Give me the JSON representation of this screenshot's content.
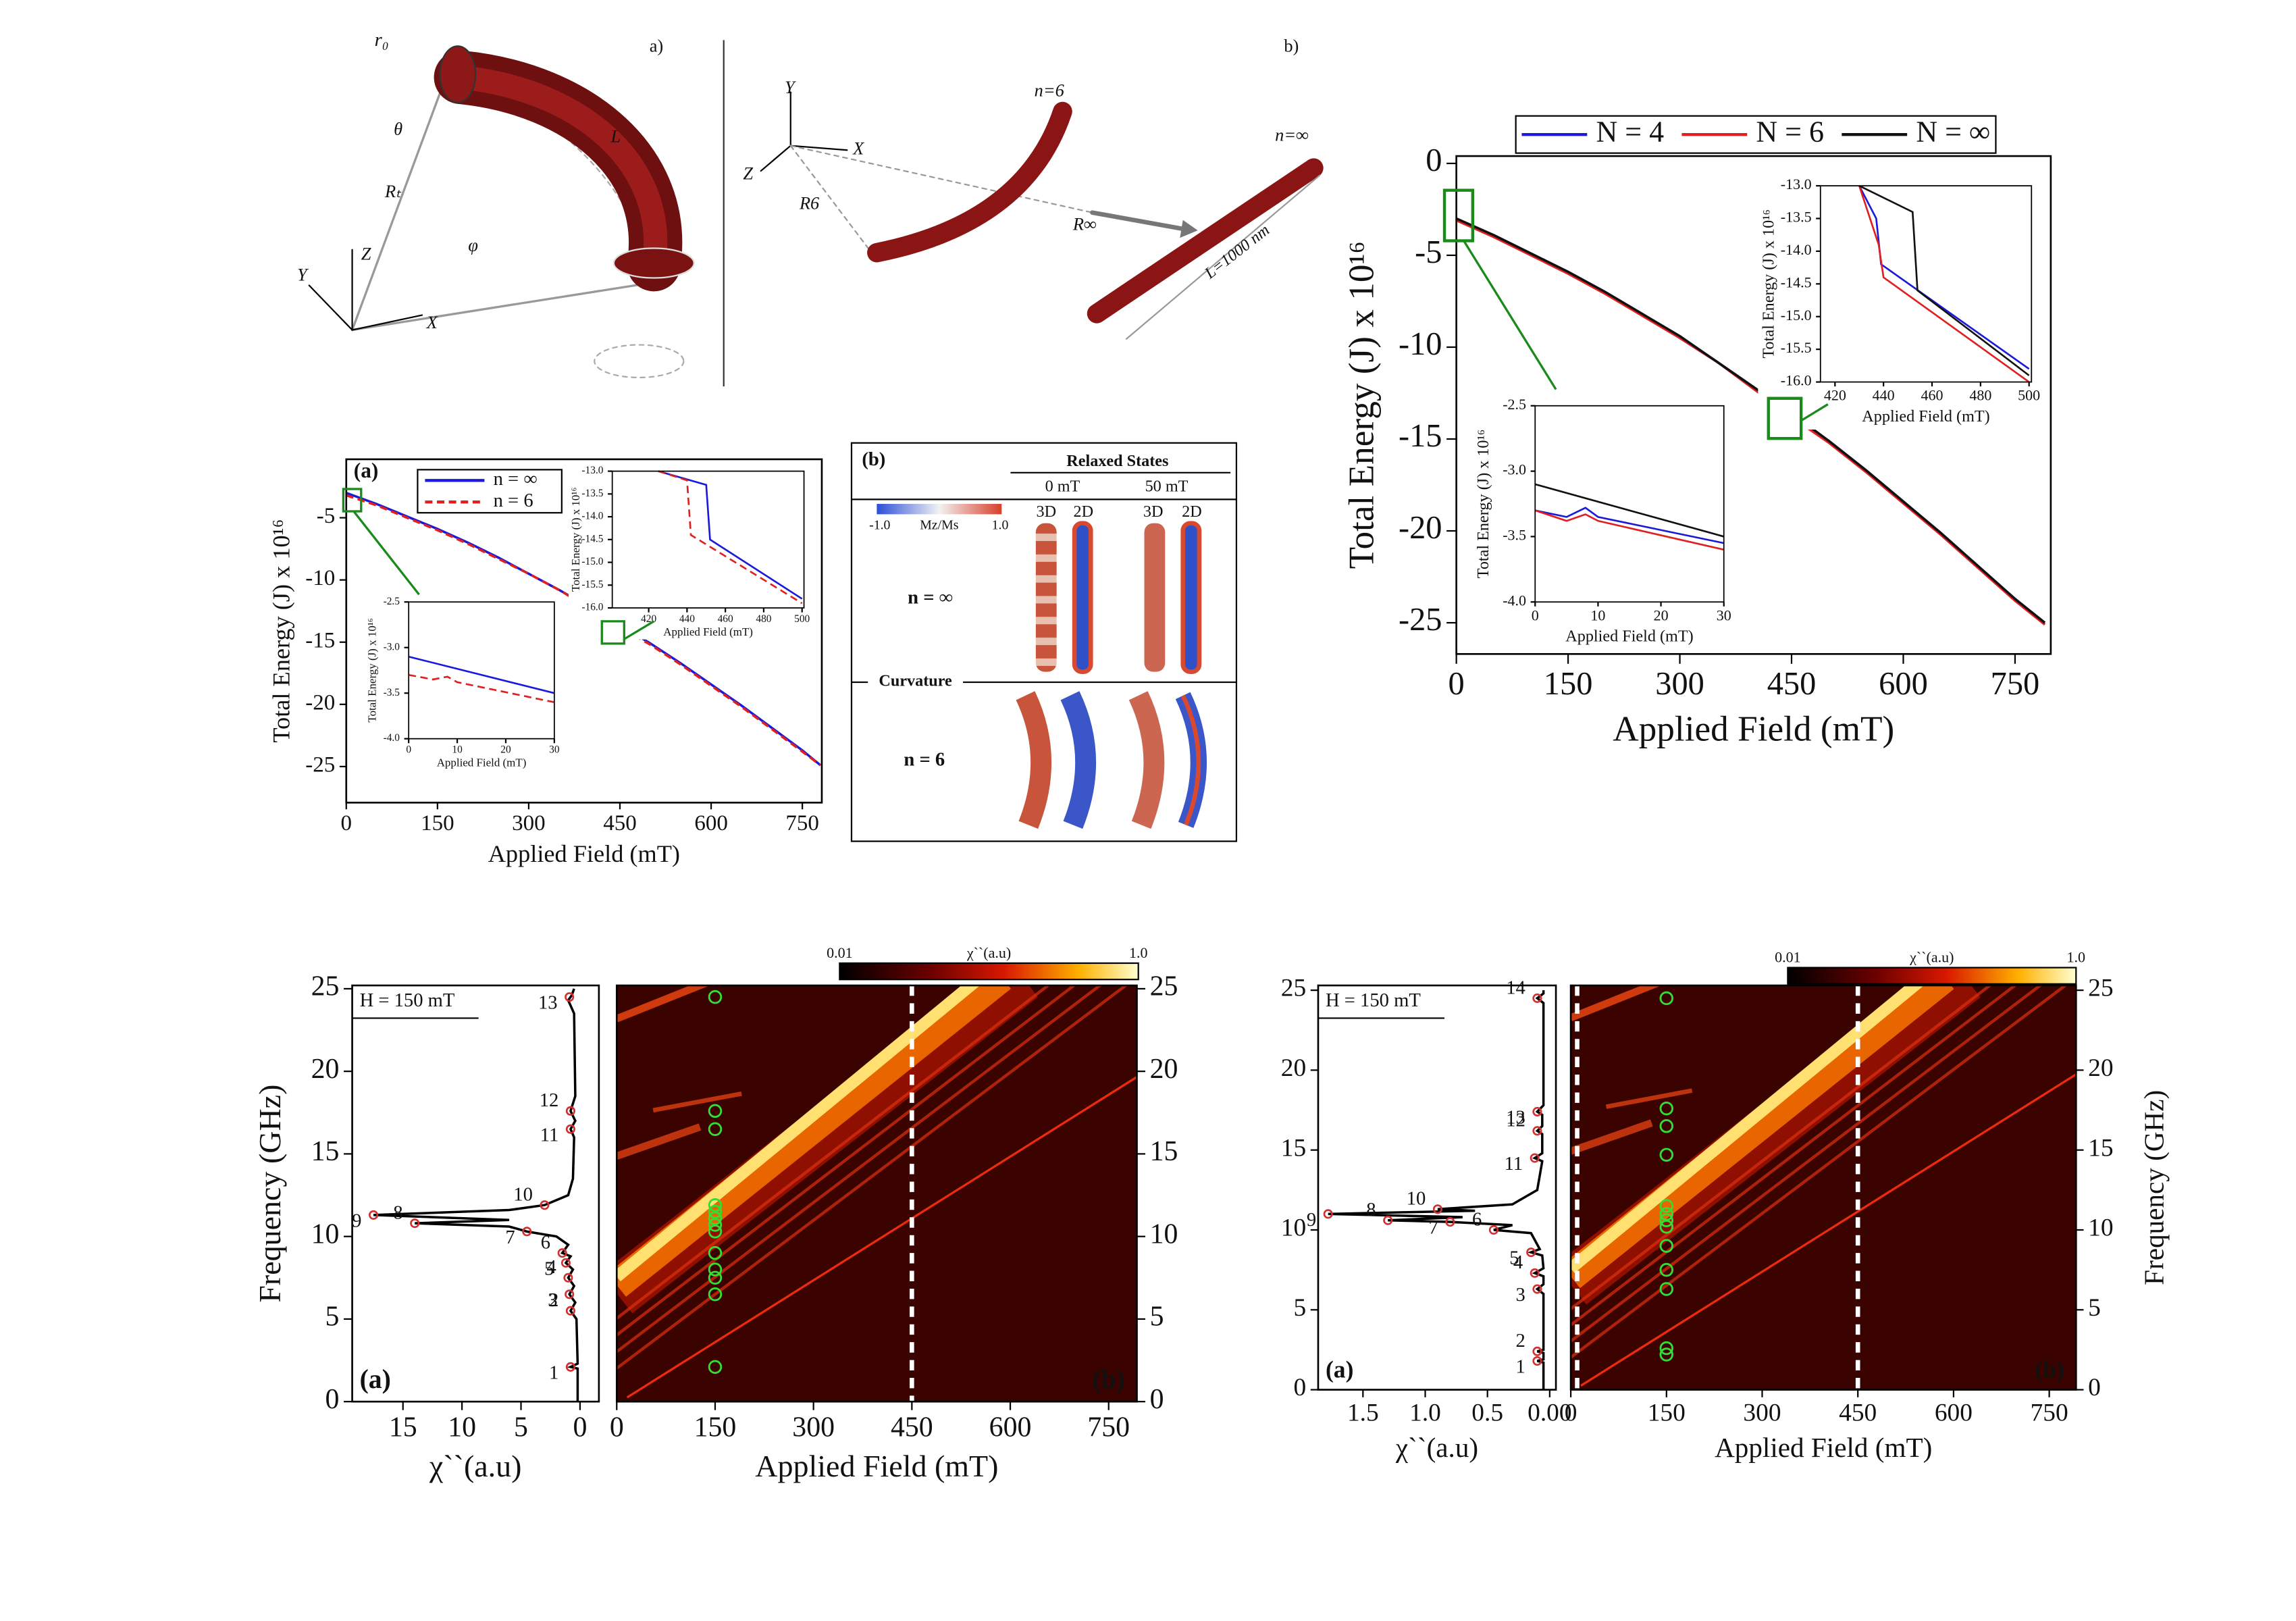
{
  "diagrams": {
    "a": {
      "panel": "a)",
      "r0": "r₀",
      "theta": "θ",
      "length": "L",
      "radius": "Rₜ",
      "z": "Z",
      "y": "Y",
      "x": "X",
      "phi": "φ"
    },
    "b": {
      "panel": "b)",
      "y": "Y",
      "x": "X",
      "z": "Z",
      "n6": "n=6",
      "ninf": "n=∞",
      "r6": "R6",
      "rinf": "R∞",
      "length": "L=1000 nm"
    }
  },
  "relaxed_states": {
    "panel": "(b)",
    "title": "Relaxed States",
    "fields": [
      "0 mT",
      "50 mT"
    ],
    "views": [
      "3D",
      "2D",
      "3D",
      "2D"
    ],
    "colorbar": {
      "min": "-1.0",
      "label": "Mz/Ms",
      "max": "1.0"
    },
    "rows": [
      "n = ∞",
      "n = 6"
    ],
    "divider": "Curvature"
  },
  "chart_data": [
    {
      "type": "line",
      "panel_label": "(a)",
      "x_label": "Applied Field (mT)",
      "y_label": "Total Energy (J) x 10¹⁶",
      "xlim": [
        0,
        782
      ],
      "ylim": [
        -27.9,
        -0.3
      ],
      "xticks": [
        0,
        150,
        300,
        450,
        600,
        750
      ],
      "yticks": [
        -5,
        -10,
        -15,
        -20,
        -25
      ],
      "legend": "upper center",
      "series": [
        {
          "name": "n = ∞",
          "color": "#1a1ad8",
          "style": "solid",
          "x": [
            0,
            50,
            100,
            150,
            200,
            250,
            300,
            350,
            400,
            450,
            500,
            550,
            600,
            650,
            700,
            750,
            780
          ],
          "values": [
            -3.0,
            -3.9,
            -4.9,
            -5.9,
            -7.0,
            -8.2,
            -9.5,
            -10.8,
            -12.2,
            -13.6,
            -15.1,
            -16.7,
            -18.4,
            -20.1,
            -21.9,
            -23.7,
            -24.9
          ]
        },
        {
          "name": "n = 6",
          "color": "#e02020",
          "style": "dashed",
          "x": [
            0,
            50,
            100,
            150,
            200,
            250,
            300,
            350,
            400,
            450,
            500,
            550,
            600,
            650,
            700,
            750,
            780
          ],
          "values": [
            -3.2,
            -4.0,
            -5.0,
            -6.0,
            -7.1,
            -8.3,
            -9.5,
            -10.8,
            -12.3,
            -13.8,
            -15.2,
            -16.8,
            -18.5,
            -20.2,
            -22.0,
            -23.8,
            -24.9
          ]
        }
      ]
    },
    {
      "type": "line",
      "x_label": "Applied Field (mT)",
      "y_label": "Total Energy (J) x 10¹⁶",
      "xlim": [
        0,
        30
      ],
      "ylim": [
        -4,
        -2.5
      ],
      "xticks": [
        0,
        10,
        20,
        30
      ],
      "yticks": [
        -2.5,
        {
          "value": -3,
          "label": "-3.0"
        },
        -3.5,
        {
          "value": -4,
          "label": "-4.0"
        }
      ],
      "series": [
        {
          "color": "#1a1ad8",
          "style": "solid",
          "x": [
            0,
            30
          ],
          "values": [
            -3.1,
            -3.5
          ]
        },
        {
          "color": "#e02020",
          "style": "dashed",
          "x": [
            0,
            5,
            8,
            10,
            30
          ],
          "values": [
            -3.3,
            -3.35,
            -3.32,
            -3.38,
            -3.6
          ]
        }
      ]
    },
    {
      "type": "line",
      "x_label": "Applied Field (mT)",
      "y_label": "Total Energy (J) x 10¹⁶",
      "xlim": [
        401,
        501
      ],
      "ylim": [
        -16,
        -13
      ],
      "xticks": [
        420,
        440,
        460,
        480,
        500
      ],
      "yticks": [
        {
          "value": -13,
          "label": "-13.0"
        },
        -13.5,
        {
          "value": -14,
          "label": "-14.0"
        },
        -14.5,
        {
          "value": -15,
          "label": "-15.0"
        },
        -15.5,
        {
          "value": -16,
          "label": "-16.0"
        }
      ],
      "series": [
        {
          "color": "#1a1ad8",
          "style": "solid",
          "x": [
            425,
            450,
            452,
            500
          ],
          "values": [
            -13.0,
            -13.3,
            -14.5,
            -15.8
          ]
        },
        {
          "color": "#e02020",
          "style": "dashed",
          "x": [
            425,
            440,
            442,
            500
          ],
          "values": [
            -13.0,
            -13.2,
            -14.4,
            -15.9
          ]
        }
      ]
    },
    {
      "type": "line",
      "x_label": "Applied Field (mT)",
      "y_label": "Total Energy (J) x 10¹⁶",
      "xlim": [
        0,
        798
      ],
      "ylim": [
        -26.7,
        0.4
      ],
      "xticks": [
        0,
        150,
        300,
        450,
        600,
        750
      ],
      "yticks": [
        0,
        -5,
        -10,
        -15,
        -20,
        -25
      ],
      "legend": "top",
      "series": [
        {
          "name": "N = 4",
          "color": "#1a1ad8",
          "style": "solid",
          "x": [
            0,
            50,
            100,
            150,
            200,
            250,
            300,
            350,
            400,
            450,
            500,
            550,
            600,
            650,
            700,
            750,
            790
          ],
          "values": [
            -3.1,
            -3.9,
            -4.9,
            -5.9,
            -7.0,
            -8.2,
            -9.5,
            -10.8,
            -12.2,
            -13.7,
            -15.1,
            -16.7,
            -18.4,
            -20.1,
            -21.9,
            -23.7,
            -25.0
          ]
        },
        {
          "name": "N = 6",
          "color": "#e02020",
          "style": "solid",
          "x": [
            0,
            50,
            100,
            150,
            200,
            250,
            300,
            350,
            400,
            450,
            500,
            550,
            600,
            650,
            700,
            750,
            790
          ],
          "values": [
            -3.1,
            -4.0,
            -5.0,
            -6.0,
            -7.1,
            -8.3,
            -9.5,
            -10.8,
            -12.3,
            -13.8,
            -15.2,
            -16.8,
            -18.5,
            -20.2,
            -22.0,
            -23.8,
            -25.1
          ]
        },
        {
          "name": "N = ∞",
          "color": "#111111",
          "style": "solid",
          "x": [
            0,
            50,
            100,
            150,
            200,
            250,
            300,
            350,
            400,
            450,
            500,
            550,
            600,
            650,
            700,
            750,
            790
          ],
          "values": [
            -3.0,
            -3.9,
            -4.9,
            -5.9,
            -7.0,
            -8.2,
            -9.4,
            -10.8,
            -12.2,
            -13.6,
            -15.1,
            -16.7,
            -18.4,
            -20.1,
            -21.9,
            -23.7,
            -25.0
          ]
        }
      ]
    },
    {
      "type": "line",
      "x_label": "Applied Field (mT)",
      "y_label": "Total Energy (J) x 10¹⁶",
      "xlim": [
        414,
        501
      ],
      "ylim": [
        -16,
        -13
      ],
      "xticks": [
        420,
        440,
        460,
        480,
        500
      ],
      "yticks": [
        {
          "value": -13,
          "label": "-13.0"
        },
        -13.5,
        {
          "value": -14,
          "label": "-14.0"
        },
        -14.5,
        {
          "value": -15,
          "label": "-15.0"
        },
        -15.5,
        {
          "value": -16,
          "label": "-16.0"
        }
      ],
      "series": [
        {
          "color": "#1a1ad8",
          "style": "solid",
          "x": [
            430,
            437,
            439,
            500
          ],
          "values": [
            -13.0,
            -13.5,
            -14.2,
            -15.8
          ]
        },
        {
          "color": "#e02020",
          "style": "solid",
          "x": [
            430,
            438,
            440,
            500
          ],
          "values": [
            -13.0,
            -13.9,
            -14.4,
            -16.0
          ]
        },
        {
          "color": "#111111",
          "style": "solid",
          "x": [
            430,
            452,
            454,
            500
          ],
          "values": [
            -13.0,
            -13.4,
            -14.6,
            -15.9
          ]
        }
      ]
    },
    {
      "type": "line",
      "x_label": "Applied Field (mT)",
      "y_label": "Total Energy (J) x 10¹⁶",
      "xlim": [
        0,
        30
      ],
      "ylim": [
        -4,
        -2.5
      ],
      "xticks": [
        0,
        10,
        20,
        30
      ],
      "yticks": [
        -2.5,
        {
          "value": -3,
          "label": "-3.0"
        },
        -3.5,
        {
          "value": -4,
          "label": "-4.0"
        }
      ],
      "series": [
        {
          "color": "#1a1ad8",
          "style": "solid",
          "x": [
            0,
            5,
            8,
            10,
            30
          ],
          "values": [
            -3.3,
            -3.35,
            -3.28,
            -3.35,
            -3.55
          ]
        },
        {
          "color": "#e02020",
          "style": "solid",
          "x": [
            0,
            5,
            8,
            10,
            30
          ],
          "values": [
            -3.3,
            -3.38,
            -3.33,
            -3.38,
            -3.6
          ]
        },
        {
          "color": "#111111",
          "style": "solid",
          "x": [
            0,
            30
          ],
          "values": [
            -3.1,
            -3.5
          ]
        }
      ]
    },
    {
      "type": "spectrum",
      "panel_label": "(a)",
      "annotation": "H = 150 mT",
      "x_label": "χ``(a.u)",
      "y_label": "Frequency (GHz)",
      "xlim": [
        19.3,
        -1.6
      ],
      "ylim": [
        0,
        25.2
      ],
      "xticks": [
        15,
        10,
        5,
        0
      ],
      "yticks": [
        0,
        5,
        10,
        15,
        20,
        25
      ],
      "series": [
        {
          "color": "#000000",
          "y": [
            0,
            2.0,
            2.1,
            2.3,
            5.0,
            5.5,
            6.0,
            6.5,
            7.0,
            7.5,
            8.0,
            8.4,
            8.8,
            9.0,
            9.5,
            10.0,
            10.3,
            10.6,
            10.8,
            11.0,
            11.3,
            11.6,
            11.9,
            12.5,
            13.5,
            16.0,
            16.5,
            17.0,
            17.6,
            18.5,
            23.5,
            24.3,
            24.6,
            25
          ],
          "values": [
            0.2,
            0.2,
            0.8,
            0.2,
            0.3,
            0.8,
            0.4,
            0.9,
            0.5,
            1.0,
            0.6,
            1.2,
            0.8,
            1.5,
            1.0,
            2.0,
            4.5,
            6.0,
            14.0,
            6.0,
            17.5,
            6.0,
            3.0,
            1.0,
            0.6,
            0.5,
            0.8,
            0.4,
            0.8,
            0.4,
            0.5,
            1.0,
            0.7,
            0.5
          ]
        }
      ],
      "modes": {
        "color": "#d03030",
        "labels": [
          "1",
          "2",
          "3",
          "4",
          "5",
          "6",
          "7",
          "8",
          "9",
          "10",
          "11",
          "12",
          "13"
        ],
        "y": [
          2.1,
          5.5,
          6.5,
          7.5,
          8.4,
          9.0,
          10.3,
          10.8,
          11.3,
          11.9,
          16.5,
          17.6,
          24.5
        ],
        "values": [
          0.8,
          0.8,
          0.9,
          1.0,
          1.2,
          1.5,
          4.5,
          14.0,
          17.5,
          3.0,
          0.8,
          0.8,
          0.9
        ]
      }
    },
    {
      "type": "heatmap",
      "panel_label": "(b)",
      "x_label": "Applied Field (mT)",
      "xlim": [
        0,
        793
      ],
      "ylim": [
        0,
        25.2
      ],
      "xticks": [
        0,
        150,
        300,
        450,
        600,
        750
      ],
      "yticks": [
        0,
        5,
        10,
        15,
        20,
        25
      ],
      "y_axis_side": "right",
      "field_lines": [
        450
      ],
      "points": {
        "color": "#33dd33",
        "x": [
          150,
          150,
          150,
          150,
          150,
          150,
          150,
          150,
          150,
          150,
          150,
          150,
          150
        ],
        "y": [
          24.5,
          17.6,
          16.5,
          11.9,
          11.5,
          11.1,
          10.7,
          10.3,
          9.0,
          8.0,
          7.5,
          6.5,
          2.1
        ]
      },
      "colorbar": {
        "label": "χ``(a.u)",
        "lim": [
          0.01,
          1
        ],
        "ticks": [
          0.01,
          {
            "value": 1,
            "label": "1.0"
          }
        ]
      }
    },
    {
      "type": "spectrum",
      "panel_label": "(a)",
      "annotation": "H = 150 mT",
      "x_label": "χ``(a.u)",
      "xlim": [
        1.86,
        -0.05
      ],
      "ylim": [
        0,
        25.3
      ],
      "xticks": [
        1.5,
        {
          "value": 1,
          "label": "1.0"
        },
        0.5,
        {
          "value": 0,
          "label": "0.00"
        }
      ],
      "yticks": [
        0,
        5,
        10,
        15,
        20,
        25
      ],
      "series": [
        {
          "color": "#000000",
          "y": [
            0,
            1.7,
            1.8,
            1.9,
            2.3,
            2.4,
            2.5,
            6.0,
            6.3,
            6.6,
            7.1,
            7.3,
            7.6,
            8.4,
            8.6,
            8.8,
            9.8,
            10.0,
            10.3,
            10.5,
            10.6,
            10.8,
            11.0,
            11.2,
            11.3,
            11.6,
            12.5,
            14.3,
            14.5,
            14.8,
            16.0,
            16.2,
            16.5,
            17.2,
            17.4,
            17.8,
            24.2,
            24.5,
            24.8,
            25
          ],
          "values": [
            0.05,
            0.05,
            0.1,
            0.05,
            0.05,
            0.1,
            0.05,
            0.05,
            0.1,
            0.05,
            0.05,
            0.12,
            0.05,
            0.06,
            0.15,
            0.08,
            0.15,
            0.45,
            0.3,
            0.8,
            1.3,
            0.7,
            1.78,
            0.6,
            0.9,
            0.3,
            0.1,
            0.06,
            0.12,
            0.06,
            0.06,
            0.1,
            0.06,
            0.06,
            0.1,
            0.05,
            0.05,
            0.1,
            0.05,
            0.05
          ]
        }
      ],
      "modes": {
        "color": "#d03030",
        "labels": [
          "1",
          "2",
          "3",
          "4",
          "5",
          "6",
          "7",
          "8",
          "9",
          "10",
          "11",
          "12",
          "13",
          "14"
        ],
        "y": [
          1.8,
          2.4,
          6.3,
          7.3,
          8.6,
          10.0,
          10.5,
          10.6,
          11.0,
          11.3,
          14.5,
          16.2,
          17.4,
          24.5
        ],
        "values": [
          0.1,
          0.1,
          0.1,
          0.12,
          0.15,
          0.45,
          0.8,
          1.3,
          1.78,
          0.9,
          0.12,
          0.1,
          0.1,
          0.1
        ]
      }
    },
    {
      "type": "heatmap",
      "panel_label": "(b)",
      "x_label": "Applied Field (mT)",
      "y_label": "Frequency (GHz)",
      "xlim": [
        0,
        792
      ],
      "ylim": [
        0,
        25.3
      ],
      "xticks": [
        0,
        150,
        300,
        450,
        600,
        750
      ],
      "yticks": [
        0,
        5,
        10,
        15,
        20,
        25
      ],
      "y_axis_side": "right",
      "field_lines": [
        10,
        450
      ],
      "points": {
        "color": "#33dd33",
        "x": [
          150,
          150,
          150,
          150,
          150,
          150,
          150,
          150,
          150,
          150,
          150,
          150,
          150
        ],
        "y": [
          24.5,
          17.6,
          16.5,
          14.7,
          11.5,
          11.0,
          10.6,
          10.2,
          9.0,
          7.5,
          6.3,
          2.6,
          2.2
        ]
      },
      "colorbar": {
        "label": "χ``(a.u)",
        "lim": [
          0.01,
          1
        ],
        "ticks": [
          0.01,
          {
            "value": 1,
            "label": "1.0"
          }
        ]
      }
    }
  ]
}
